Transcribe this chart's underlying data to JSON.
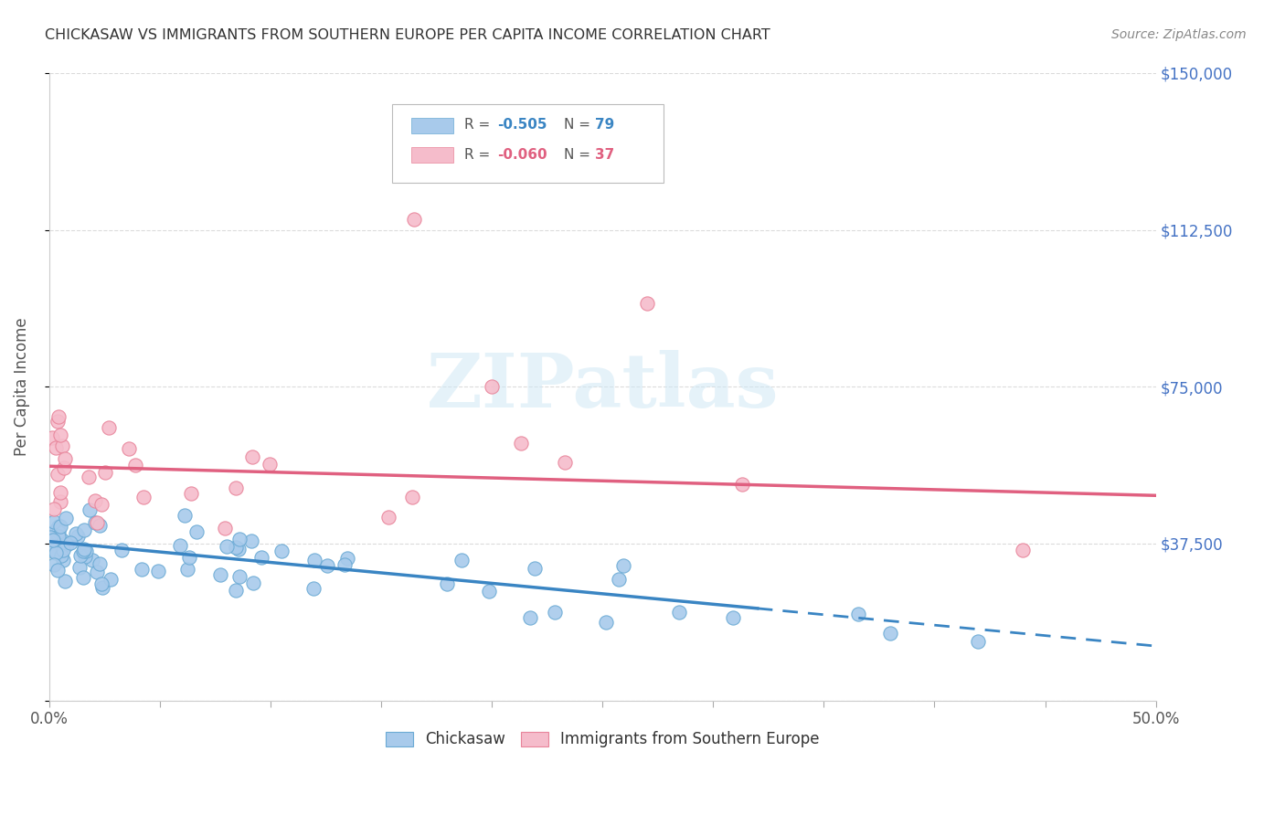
{
  "title": "CHICKASAW VS IMMIGRANTS FROM SOUTHERN EUROPE PER CAPITA INCOME CORRELATION CHART",
  "source": "Source: ZipAtlas.com",
  "ylabel": "Per Capita Income",
  "xlim": [
    0.0,
    0.5
  ],
  "ylim": [
    0,
    150000
  ],
  "yticks": [
    0,
    37500,
    75000,
    112500,
    150000
  ],
  "ytick_labels": [
    "",
    "$37,500",
    "$75,000",
    "$112,500",
    "$150,000"
  ],
  "xticks": [
    0.0,
    0.05,
    0.1,
    0.15,
    0.2,
    0.25,
    0.3,
    0.35,
    0.4,
    0.45,
    0.5
  ],
  "xtick_labels_show": [
    "0.0%",
    "",
    "",
    "",
    "",
    "",
    "",
    "",
    "",
    "",
    "50.0%"
  ],
  "blue_color": "#a8caeb",
  "blue_edge_color": "#6aaad4",
  "pink_color": "#f5bccb",
  "pink_edge_color": "#e8849a",
  "blue_line_color": "#3a85c3",
  "pink_line_color": "#e06080",
  "legend_label_blue": "Chickasaw",
  "legend_label_pink": "Immigrants from Southern Europe",
  "watermark": "ZIPatlas",
  "title_color": "#333333",
  "ytick_color": "#4472c4",
  "grid_color": "#cccccc",
  "blue_trend_y0": 38000,
  "blue_trend_y1": 13000,
  "blue_trend_solid_xend": 0.32,
  "pink_trend_y0": 56000,
  "pink_trend_y1": 49000
}
